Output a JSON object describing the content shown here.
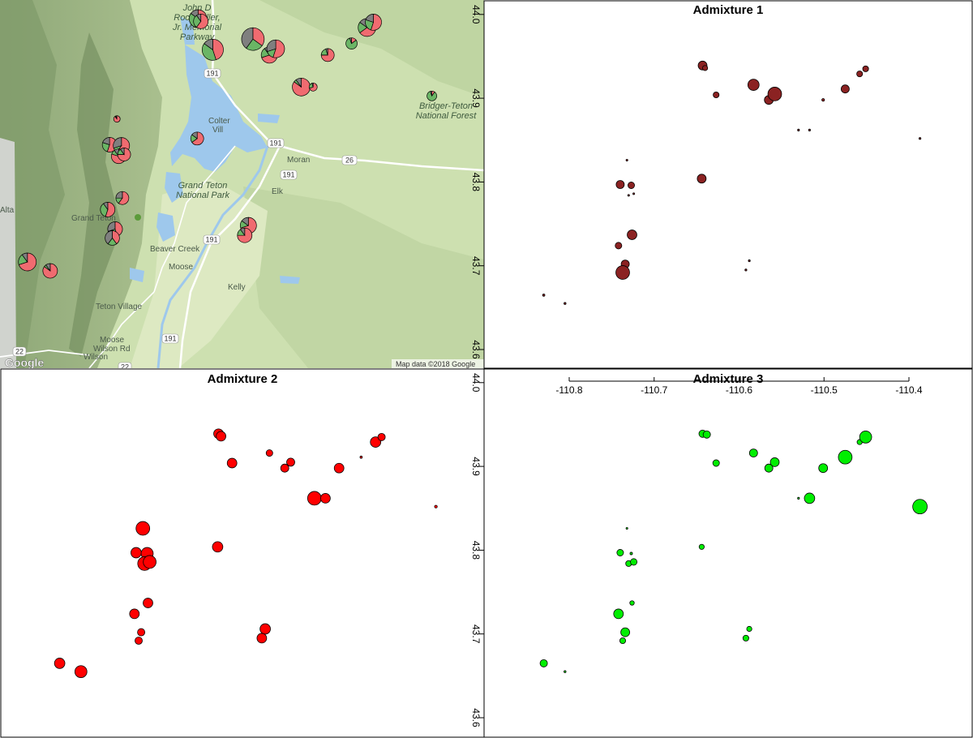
{
  "map": {
    "labels": {
      "rockefeller": [
        "John D",
        "Rockefeller,",
        "Jr. Memorial",
        "Parkway"
      ],
      "colter": [
        "Colter",
        "Vill"
      ],
      "grand_teton_np": [
        "Grand Teton",
        "National Park"
      ],
      "grand_teton": "Grand Teton",
      "bridger_teton": [
        "Bridger-Teton",
        "National Forest"
      ],
      "moran": "Moran",
      "elk": "Elk",
      "alta": "Alta",
      "beaver_creek": "Beaver Creek",
      "moose": "Moose",
      "kelly": "Kelly",
      "teton_village": "Teton Village",
      "moose_wilson": [
        "Moose",
        "Wilson Rd"
      ],
      "wilson": "Wilson",
      "route_191": "191",
      "route_26": "26",
      "route_22": "22"
    },
    "google_logo": "Google",
    "attribution": "Map data ©2018 Google",
    "colors": {
      "terrain": "#cde0b0",
      "water": "#9ec8ec",
      "pie_red": "#f06b70",
      "pie_green": "#6ab565",
      "pie_gray": "#7f7f7f"
    }
  },
  "chart_data": [
    {
      "type": "scatter",
      "title": "Admixture 1",
      "color": "#8b2222",
      "xlim": [
        -110.86,
        -110.33
      ],
      "ylim": [
        43.57,
        44.0
      ],
      "points": [
        {
          "x": -110.643,
          "y": 43.939,
          "v": 0.55
        },
        {
          "x": -110.64,
          "y": 43.936,
          "v": 0.3
        },
        {
          "x": -110.627,
          "y": 43.904,
          "v": 0.35
        },
        {
          "x": -110.583,
          "y": 43.916,
          "v": 0.7
        },
        {
          "x": -110.565,
          "y": 43.898,
          "v": 0.55
        },
        {
          "x": -110.558,
          "y": 43.905,
          "v": 0.85
        },
        {
          "x": -110.501,
          "y": 43.898,
          "v": 0.12
        },
        {
          "x": -110.475,
          "y": 43.911,
          "v": 0.5
        },
        {
          "x": -110.458,
          "y": 43.929,
          "v": 0.35
        },
        {
          "x": -110.451,
          "y": 43.935,
          "v": 0.35
        },
        {
          "x": -110.53,
          "y": 43.862,
          "v": 0.05
        },
        {
          "x": -110.517,
          "y": 43.862,
          "v": 0.05
        },
        {
          "x": -110.387,
          "y": 43.852,
          "v": 0.05
        },
        {
          "x": -110.644,
          "y": 43.804,
          "v": 0.55
        },
        {
          "x": -110.732,
          "y": 43.826,
          "v": 0.04
        },
        {
          "x": -110.74,
          "y": 43.797,
          "v": 0.5
        },
        {
          "x": -110.727,
          "y": 43.796,
          "v": 0.4
        },
        {
          "x": -110.73,
          "y": 43.784,
          "v": 0.04
        },
        {
          "x": -110.724,
          "y": 43.786,
          "v": 0.04
        },
        {
          "x": -110.726,
          "y": 43.737,
          "v": 0.6
        },
        {
          "x": -110.742,
          "y": 43.724,
          "v": 0.4
        },
        {
          "x": -110.734,
          "y": 43.702,
          "v": 0.5
        },
        {
          "x": -110.737,
          "y": 43.692,
          "v": 0.85
        },
        {
          "x": -110.588,
          "y": 43.706,
          "v": 0.05
        },
        {
          "x": -110.592,
          "y": 43.695,
          "v": 0.05
        },
        {
          "x": -110.83,
          "y": 43.665,
          "v": 0.08
        },
        {
          "x": -110.805,
          "y": 43.655,
          "v": 0.06
        }
      ]
    },
    {
      "type": "scatter",
      "title": "Admixture 2",
      "color": "#ff0000",
      "xlim": [
        -110.86,
        -110.33
      ],
      "ylim": [
        43.57,
        44.0
      ],
      "points": [
        {
          "x": -110.643,
          "y": 43.939,
          "v": 0.6
        },
        {
          "x": -110.64,
          "y": 43.936,
          "v": 0.6
        },
        {
          "x": -110.627,
          "y": 43.904,
          "v": 0.6
        },
        {
          "x": -110.583,
          "y": 43.916,
          "v": 0.4
        },
        {
          "x": -110.565,
          "y": 43.898,
          "v": 0.5
        },
        {
          "x": -110.558,
          "y": 43.905,
          "v": 0.5
        },
        {
          "x": -110.501,
          "y": 43.898,
          "v": 0.6
        },
        {
          "x": -110.475,
          "y": 43.911,
          "v": 0.08
        },
        {
          "x": -110.458,
          "y": 43.929,
          "v": 0.65
        },
        {
          "x": -110.451,
          "y": 43.935,
          "v": 0.45
        },
        {
          "x": -110.53,
          "y": 43.862,
          "v": 0.85
        },
        {
          "x": -110.517,
          "y": 43.862,
          "v": 0.6
        },
        {
          "x": -110.387,
          "y": 43.852,
          "v": 0.12
        },
        {
          "x": -110.644,
          "y": 43.804,
          "v": 0.65
        },
        {
          "x": -110.732,
          "y": 43.826,
          "v": 0.85
        },
        {
          "x": -110.74,
          "y": 43.797,
          "v": 0.65
        },
        {
          "x": -110.727,
          "y": 43.796,
          "v": 0.75
        },
        {
          "x": -110.73,
          "y": 43.784,
          "v": 0.85
        },
        {
          "x": -110.724,
          "y": 43.786,
          "v": 0.8
        },
        {
          "x": -110.726,
          "y": 43.737,
          "v": 0.6
        },
        {
          "x": -110.742,
          "y": 43.724,
          "v": 0.6
        },
        {
          "x": -110.734,
          "y": 43.702,
          "v": 0.45
        },
        {
          "x": -110.737,
          "y": 43.692,
          "v": 0.45
        },
        {
          "x": -110.588,
          "y": 43.706,
          "v": 0.65
        },
        {
          "x": -110.592,
          "y": 43.695,
          "v": 0.6
        },
        {
          "x": -110.83,
          "y": 43.665,
          "v": 0.65
        },
        {
          "x": -110.805,
          "y": 43.655,
          "v": 0.75
        }
      ]
    },
    {
      "type": "scatter",
      "title": "Admixture 3",
      "color": "#00ee00",
      "xlim": [
        -110.86,
        -110.33
      ],
      "ylim": [
        43.57,
        44.0
      ],
      "xticks": [
        -110.8,
        -110.7,
        -110.6,
        -110.5,
        -110.4
      ],
      "yticks": [
        43.6,
        43.7,
        43.8,
        43.9,
        44.0
      ],
      "points": [
        {
          "x": -110.643,
          "y": 43.939,
          "v": 0.45
        },
        {
          "x": -110.638,
          "y": 43.938,
          "v": 0.45
        },
        {
          "x": -110.627,
          "y": 43.904,
          "v": 0.4
        },
        {
          "x": -110.583,
          "y": 43.916,
          "v": 0.5
        },
        {
          "x": -110.565,
          "y": 43.898,
          "v": 0.5
        },
        {
          "x": -110.558,
          "y": 43.905,
          "v": 0.55
        },
        {
          "x": -110.501,
          "y": 43.898,
          "v": 0.55
        },
        {
          "x": -110.475,
          "y": 43.911,
          "v": 0.85
        },
        {
          "x": -110.458,
          "y": 43.929,
          "v": 0.3
        },
        {
          "x": -110.451,
          "y": 43.935,
          "v": 0.75
        },
        {
          "x": -110.53,
          "y": 43.862,
          "v": 0.05
        },
        {
          "x": -110.517,
          "y": 43.862,
          "v": 0.65
        },
        {
          "x": -110.387,
          "y": 43.852,
          "v": 0.9
        },
        {
          "x": -110.644,
          "y": 43.804,
          "v": 0.3
        },
        {
          "x": -110.732,
          "y": 43.826,
          "v": 0.04
        },
        {
          "x": -110.74,
          "y": 43.797,
          "v": 0.4
        },
        {
          "x": -110.727,
          "y": 43.796,
          "v": 0.1
        },
        {
          "x": -110.73,
          "y": 43.784,
          "v": 0.35
        },
        {
          "x": -110.724,
          "y": 43.786,
          "v": 0.4
        },
        {
          "x": -110.726,
          "y": 43.737,
          "v": 0.25
        },
        {
          "x": -110.742,
          "y": 43.724,
          "v": 0.6
        },
        {
          "x": -110.734,
          "y": 43.702,
          "v": 0.55
        },
        {
          "x": -110.737,
          "y": 43.692,
          "v": 0.35
        },
        {
          "x": -110.588,
          "y": 43.706,
          "v": 0.3
        },
        {
          "x": -110.592,
          "y": 43.695,
          "v": 0.35
        },
        {
          "x": -110.83,
          "y": 43.665,
          "v": 0.45
        },
        {
          "x": -110.805,
          "y": 43.655,
          "v": 0.06
        }
      ]
    }
  ],
  "pies": [
    {
      "x": -110.643,
      "y": 43.939,
      "r": 11,
      "slices": [
        0.55,
        0.3,
        0.15
      ]
    },
    {
      "x": -110.64,
      "y": 43.936,
      "r": 9,
      "slices": [
        0.6,
        0.3,
        0.1
      ]
    },
    {
      "x": -110.627,
      "y": 43.904,
      "r": 13,
      "slices": [
        0.45,
        0.4,
        0.15
      ]
    },
    {
      "x": -110.583,
      "y": 43.916,
      "r": 14,
      "slices": [
        0.35,
        0.25,
        0.4
      ]
    },
    {
      "x": -110.565,
      "y": 43.898,
      "r": 10,
      "slices": [
        0.7,
        0.2,
        0.1
      ]
    },
    {
      "x": -110.558,
      "y": 43.905,
      "r": 11,
      "slices": [
        0.55,
        0.15,
        0.3
      ]
    },
    {
      "x": -110.501,
      "y": 43.898,
      "r": 8,
      "slices": [
        0.75,
        0.2,
        0.05
      ]
    },
    {
      "x": -110.475,
      "y": 43.911,
      "r": 7,
      "slices": [
        0.15,
        0.8,
        0.05
      ]
    },
    {
      "x": -110.458,
      "y": 43.929,
      "r": 11,
      "slices": [
        0.65,
        0.2,
        0.15
      ]
    },
    {
      "x": -110.451,
      "y": 43.935,
      "r": 10,
      "slices": [
        0.55,
        0.25,
        0.2
      ]
    },
    {
      "x": -110.53,
      "y": 43.862,
      "r": 11,
      "slices": [
        0.85,
        0.05,
        0.1
      ]
    },
    {
      "x": -110.517,
      "y": 43.862,
      "r": 5,
      "slices": [
        0.7,
        0.25,
        0.05
      ]
    },
    {
      "x": -110.387,
      "y": 43.852,
      "r": 6,
      "slices": [
        0.1,
        0.85,
        0.05
      ]
    },
    {
      "x": -110.644,
      "y": 43.804,
      "r": 8,
      "slices": [
        0.65,
        0.2,
        0.15
      ]
    },
    {
      "x": -110.732,
      "y": 43.826,
      "r": 4,
      "slices": [
        0.9,
        0.05,
        0.05
      ]
    },
    {
      "x": -110.74,
      "y": 43.797,
      "r": 9,
      "slices": [
        0.55,
        0.25,
        0.2
      ]
    },
    {
      "x": -110.727,
      "y": 43.796,
      "r": 10,
      "slices": [
        0.6,
        0.1,
        0.3
      ]
    },
    {
      "x": -110.73,
      "y": 43.784,
      "r": 9,
      "slices": [
        0.8,
        0.1,
        0.1
      ]
    },
    {
      "x": -110.724,
      "y": 43.786,
      "r": 8,
      "slices": [
        0.75,
        0.15,
        0.1
      ]
    },
    {
      "x": -110.726,
      "y": 43.737,
      "r": 8,
      "slices": [
        0.6,
        0.15,
        0.25
      ]
    },
    {
      "x": -110.742,
      "y": 43.724,
      "r": 9,
      "slices": [
        0.55,
        0.35,
        0.1
      ]
    },
    {
      "x": -110.734,
      "y": 43.702,
      "r": 9,
      "slices": [
        0.45,
        0.25,
        0.3
      ]
    },
    {
      "x": -110.737,
      "y": 43.692,
      "r": 9,
      "slices": [
        0.4,
        0.2,
        0.4
      ]
    },
    {
      "x": -110.588,
      "y": 43.706,
      "r": 10,
      "slices": [
        0.7,
        0.15,
        0.15
      ]
    },
    {
      "x": -110.592,
      "y": 43.695,
      "r": 9,
      "slices": [
        0.75,
        0.15,
        0.1
      ]
    },
    {
      "x": -110.83,
      "y": 43.665,
      "r": 11,
      "slices": [
        0.7,
        0.2,
        0.1
      ]
    },
    {
      "x": -110.805,
      "y": 43.655,
      "r": 9,
      "slices": [
        0.85,
        0.05,
        0.1
      ]
    }
  ]
}
